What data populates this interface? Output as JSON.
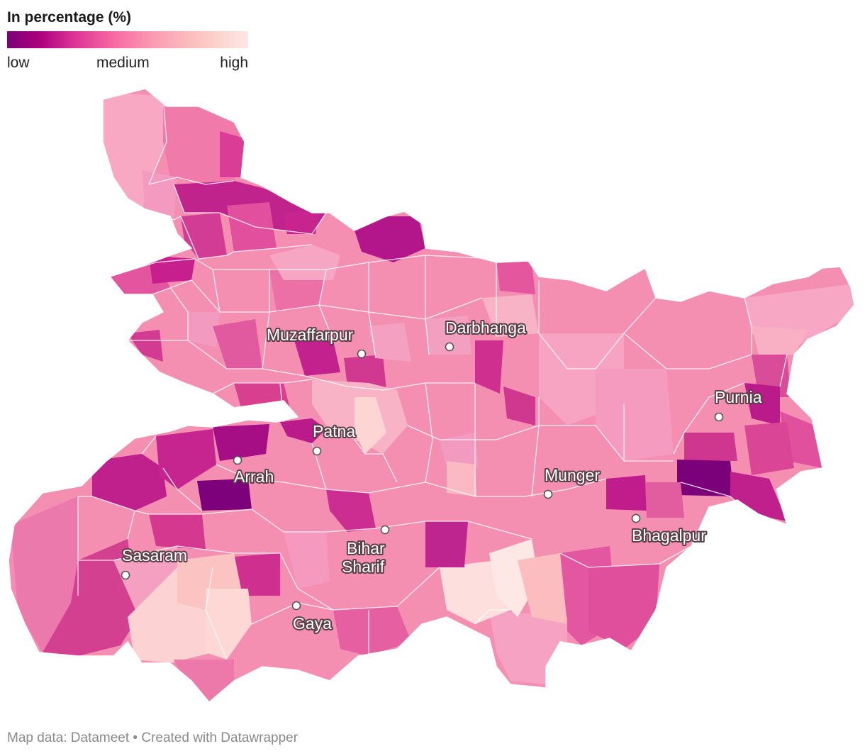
{
  "legend": {
    "title": "In percentage (%)",
    "low_label": "low",
    "medium_label": "medium",
    "high_label": "high",
    "colors": [
      "#7a0177",
      "#ae017e",
      "#dd3497",
      "#f768a1",
      "#fa9fb5",
      "#fcc5c0",
      "#fde0dd",
      "#fff7f3"
    ]
  },
  "cities": [
    {
      "name": "Muzaffarpur"
    },
    {
      "name": "Darbhanga"
    },
    {
      "name": "Purnia"
    },
    {
      "name": "Patna"
    },
    {
      "name": "Arrah"
    },
    {
      "name": "Munger"
    },
    {
      "name": "Bhagalpur"
    },
    {
      "name": "Bihar Sharif",
      "line1": "Bihar",
      "line2": "Sharif"
    },
    {
      "name": "Sasaram"
    },
    {
      "name": "Gaya"
    }
  ],
  "footer": {
    "text": "Map data: Datameet • Created with Datawrapper"
  }
}
